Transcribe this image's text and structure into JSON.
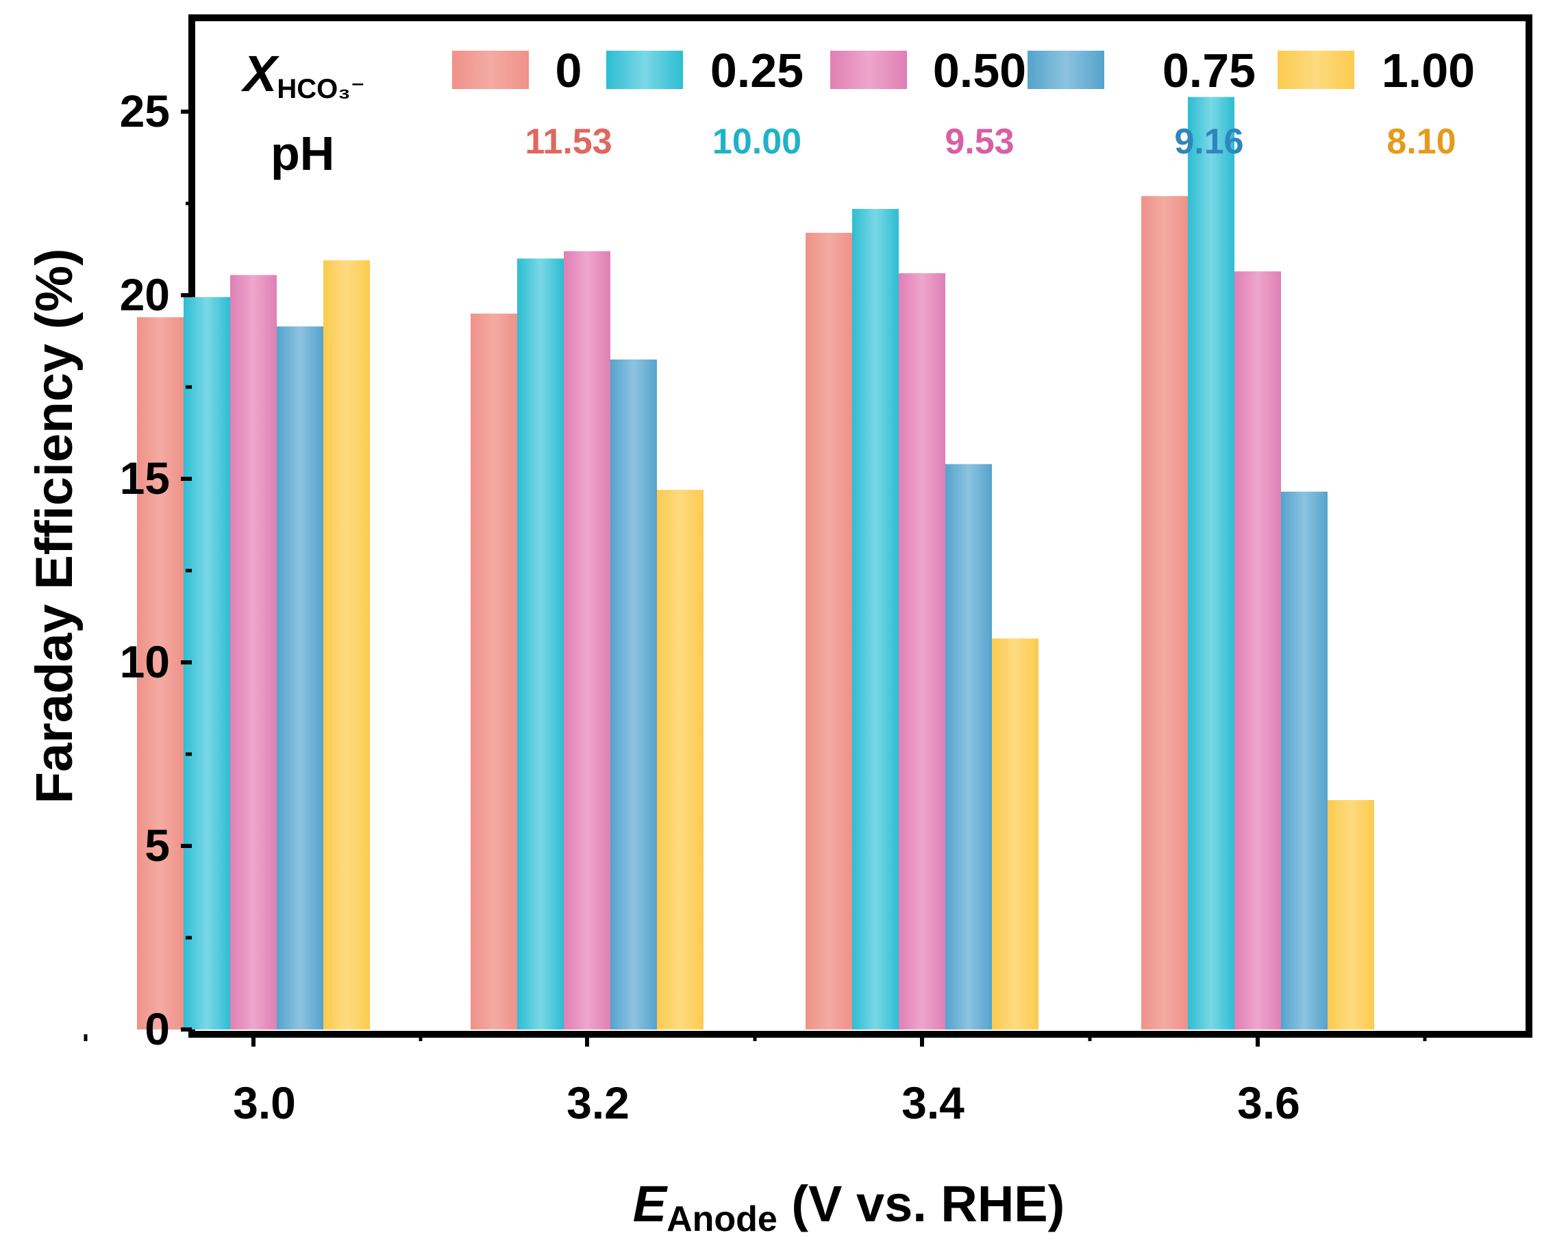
{
  "chart_data": {
    "type": "bar",
    "title": "",
    "xlabel": {
      "main": "E",
      "sub": "Anode",
      "rest": " (V vs. RHE)"
    },
    "ylabel": "Faraday Efficiency (%)",
    "ylim": [
      0,
      27.5
    ],
    "yticks": [
      "0",
      "5",
      "10",
      "15",
      "20",
      "25"
    ],
    "categories": [
      "3.0",
      "3.2",
      "3.4",
      "3.6"
    ],
    "legend": {
      "title_main": "X",
      "title_sub": "HCO₃⁻",
      "ph_label": "pH",
      "placement": "top"
    },
    "series": [
      {
        "name": "0",
        "ph": "11.53",
        "color": "#EE9289",
        "light": "#F4ABA2",
        "ph_color": "#E0675F",
        "values": [
          19.4,
          19.5,
          21.7,
          22.7
        ]
      },
      {
        "name": "0.25",
        "ph": "10.00",
        "color": "#2DBDD3",
        "light": "#7AD8E6",
        "ph_color": "#20B2C8",
        "values": [
          19.95,
          21.0,
          22.35,
          25.4
        ]
      },
      {
        "name": "0.50",
        "ph": "9.53",
        "color": "#DF80B4",
        "light": "#EEA6CC",
        "ph_color": "#D85FA3",
        "values": [
          20.55,
          21.2,
          20.6,
          20.65
        ]
      },
      {
        "name": "0.75",
        "ph": "9.16",
        "color": "#56A3CC",
        "light": "#8CC3E0",
        "ph_color": "#2E86BD",
        "values": [
          19.15,
          18.25,
          15.4,
          14.65
        ]
      },
      {
        "name": "1.00",
        "ph": "8.10",
        "color": "#FCCB4F",
        "light": "#FEDB80",
        "ph_color": "#E59A1C",
        "values": [
          20.95,
          14.7,
          10.65,
          6.25
        ]
      }
    ]
  }
}
